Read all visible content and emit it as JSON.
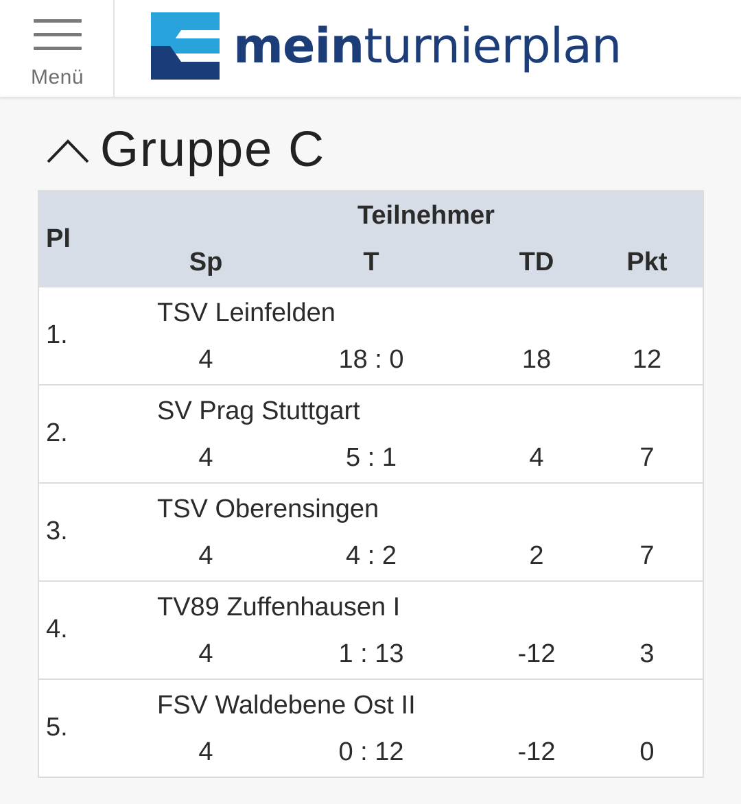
{
  "header": {
    "menu_label": "Menü",
    "brand_bold": "mein",
    "brand_light": "turnierplan",
    "brand_color": "#1d3d78",
    "logo_colors": {
      "top": "#29a3dc",
      "bottom": "#1a3c78"
    }
  },
  "group": {
    "title": "Gruppe C",
    "toggle_icon": "chevron-up-icon"
  },
  "table": {
    "headers": {
      "place": "Pl",
      "team": "Teilnehmer",
      "games": "Sp",
      "goals": "T",
      "goal_diff": "TD",
      "points": "Pkt"
    },
    "rows": [
      {
        "place": "1.",
        "team": "TSV Leinfelden",
        "games": "4",
        "goals": "18 : 0",
        "goal_diff": "18",
        "points": "12"
      },
      {
        "place": "2.",
        "team": "SV Prag Stuttgart",
        "games": "4",
        "goals": "5 : 1",
        "goal_diff": "4",
        "points": "7"
      },
      {
        "place": "3.",
        "team": "TSV Oberensingen",
        "games": "4",
        "goals": "4 : 2",
        "goal_diff": "2",
        "points": "7"
      },
      {
        "place": "4.",
        "team": "TV89 Zuffenhausen I",
        "games": "4",
        "goals": "1 : 13",
        "goal_diff": "-12",
        "points": "3"
      },
      {
        "place": "5.",
        "team": "FSV Waldebene Ost II",
        "games": "4",
        "goals": "0 : 12",
        "goal_diff": "-12",
        "points": "0"
      }
    ]
  }
}
